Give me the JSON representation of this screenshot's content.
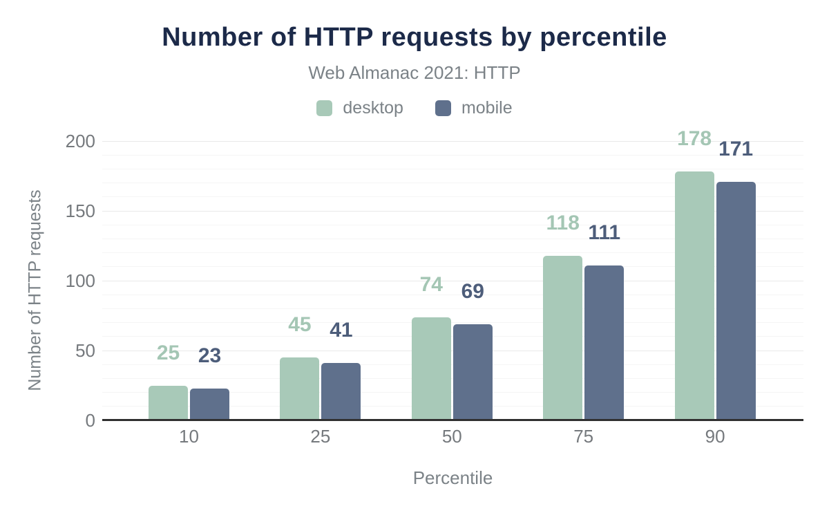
{
  "chart_data": {
    "type": "bar",
    "title": "Number of HTTP requests by percentile",
    "subtitle": "Web Almanac 2021: HTTP",
    "categories": [
      "10",
      "25",
      "50",
      "75",
      "90"
    ],
    "series": [
      {
        "name": "desktop",
        "color": "#a8c9b8",
        "label_color": "#a4c6b4",
        "values": [
          25,
          45,
          74,
          118,
          178
        ]
      },
      {
        "name": "mobile",
        "color": "#5f708c",
        "label_color": "#4d5d7a",
        "values": [
          23,
          41,
          69,
          111,
          171
        ]
      }
    ],
    "xlabel": "Percentile",
    "ylabel": "Number of HTTP requests",
    "ylim": [
      0,
      200
    ],
    "yticks": [
      0,
      50,
      100,
      150,
      200
    ],
    "minor_grid_step": 10,
    "grid": "on",
    "legend_position": "top",
    "value_labels": "above bars",
    "colors": {
      "title": "#1c2a49",
      "muted_text": "#7b8287",
      "tick_text": "#75797d",
      "axis_line": "#303030",
      "major_grid": "#e9e9e9",
      "minor_grid": "#f5f5f5",
      "background": "#ffffff"
    }
  }
}
